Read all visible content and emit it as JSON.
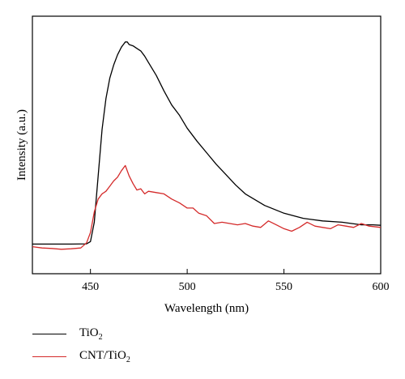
{
  "chart_data": {
    "type": "line",
    "title": "",
    "xlabel": "Wavelength (nm)",
    "ylabel": "Intensity (a.u.)",
    "xlim": [
      420,
      600
    ],
    "ylim": [
      0,
      1
    ],
    "xticks": [
      450,
      500,
      550,
      600
    ],
    "y_tick_labels_shown": false,
    "grid": false,
    "legend_position": "below",
    "series": [
      {
        "name": "TiO2",
        "color": "#000000",
        "x": [
          420,
          440,
          448,
          450,
          452,
          454,
          456,
          458,
          460,
          462,
          464,
          466,
          467,
          468,
          469,
          470,
          472,
          474,
          476,
          478,
          480,
          484,
          488,
          492,
          496,
          500,
          505,
          510,
          515,
          520,
          525,
          530,
          540,
          550,
          560,
          570,
          580,
          590,
          596,
          600
        ],
        "y": [
          0.115,
          0.115,
          0.116,
          0.125,
          0.2,
          0.38,
          0.56,
          0.68,
          0.76,
          0.81,
          0.85,
          0.88,
          0.89,
          0.9,
          0.9,
          0.89,
          0.885,
          0.875,
          0.865,
          0.845,
          0.82,
          0.77,
          0.71,
          0.655,
          0.615,
          0.565,
          0.515,
          0.47,
          0.425,
          0.385,
          0.345,
          0.31,
          0.265,
          0.235,
          0.215,
          0.205,
          0.2,
          0.19,
          0.19,
          0.188
        ]
      },
      {
        "name": "CNT/TiO2",
        "color": "#d42a2a",
        "x": [
          420,
          425,
          430,
          435,
          440,
          445,
          448,
          450,
          452,
          454,
          456,
          458,
          460,
          462,
          464,
          466,
          468,
          470,
          472,
          474,
          476,
          478,
          480,
          484,
          488,
          492,
          496,
          500,
          503,
          506,
          510,
          514,
          518,
          522,
          526,
          530,
          534,
          538,
          542,
          546,
          550,
          554,
          558,
          562,
          566,
          570,
          574,
          578,
          582,
          586,
          590,
          594,
          600
        ],
        "y": [
          0.105,
          0.1,
          0.098,
          0.095,
          0.097,
          0.1,
          0.12,
          0.16,
          0.24,
          0.29,
          0.31,
          0.32,
          0.34,
          0.36,
          0.375,
          0.4,
          0.42,
          0.38,
          0.35,
          0.325,
          0.33,
          0.31,
          0.32,
          0.315,
          0.31,
          0.29,
          0.275,
          0.255,
          0.255,
          0.235,
          0.225,
          0.195,
          0.2,
          0.195,
          0.19,
          0.195,
          0.185,
          0.18,
          0.205,
          0.19,
          0.175,
          0.165,
          0.18,
          0.2,
          0.185,
          0.18,
          0.175,
          0.19,
          0.185,
          0.18,
          0.195,
          0.185,
          0.18
        ]
      }
    ]
  },
  "legend": {
    "tio2": {
      "main": "TiO",
      "sub": "2"
    },
    "cnt_tio2": {
      "main": "CNT/TiO",
      "sub": "2"
    }
  }
}
